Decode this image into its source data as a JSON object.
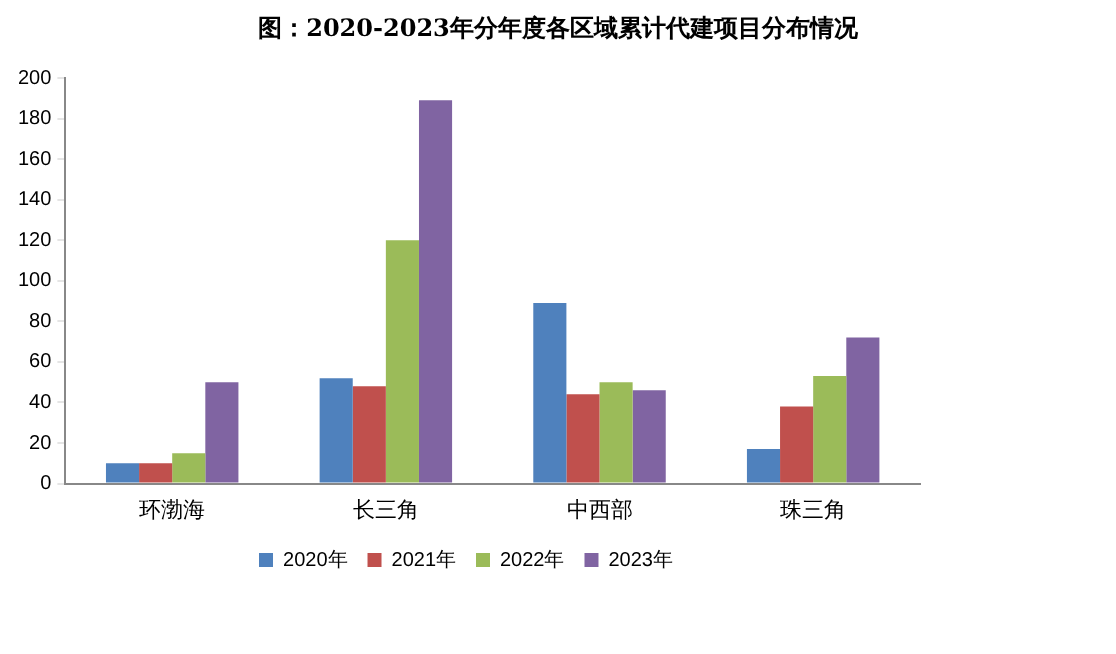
{
  "chart_data": {
    "type": "bar",
    "title": "图：2020-2023年分年度各区域累计代建项目分布情况",
    "categories": [
      "环渤海",
      "长三角",
      "中西部",
      "珠三角"
    ],
    "series": [
      {
        "name": "2020年",
        "color": "#4f81bd",
        "values": [
          10,
          52,
          89,
          17
        ]
      },
      {
        "name": "2021年",
        "color": "#c0504d",
        "values": [
          10,
          48,
          44,
          38
        ]
      },
      {
        "name": "2022年",
        "color": "#9bbb59",
        "values": [
          15,
          120,
          50,
          53
        ]
      },
      {
        "name": "2023年",
        "color": "#8064a2",
        "values": [
          50,
          189,
          46,
          72
        ]
      }
    ],
    "ylim": [
      0,
      200
    ],
    "yticks": [
      0,
      20,
      40,
      60,
      80,
      100,
      120,
      140,
      160,
      180,
      200
    ],
    "grid": false,
    "legend": "bottom"
  }
}
